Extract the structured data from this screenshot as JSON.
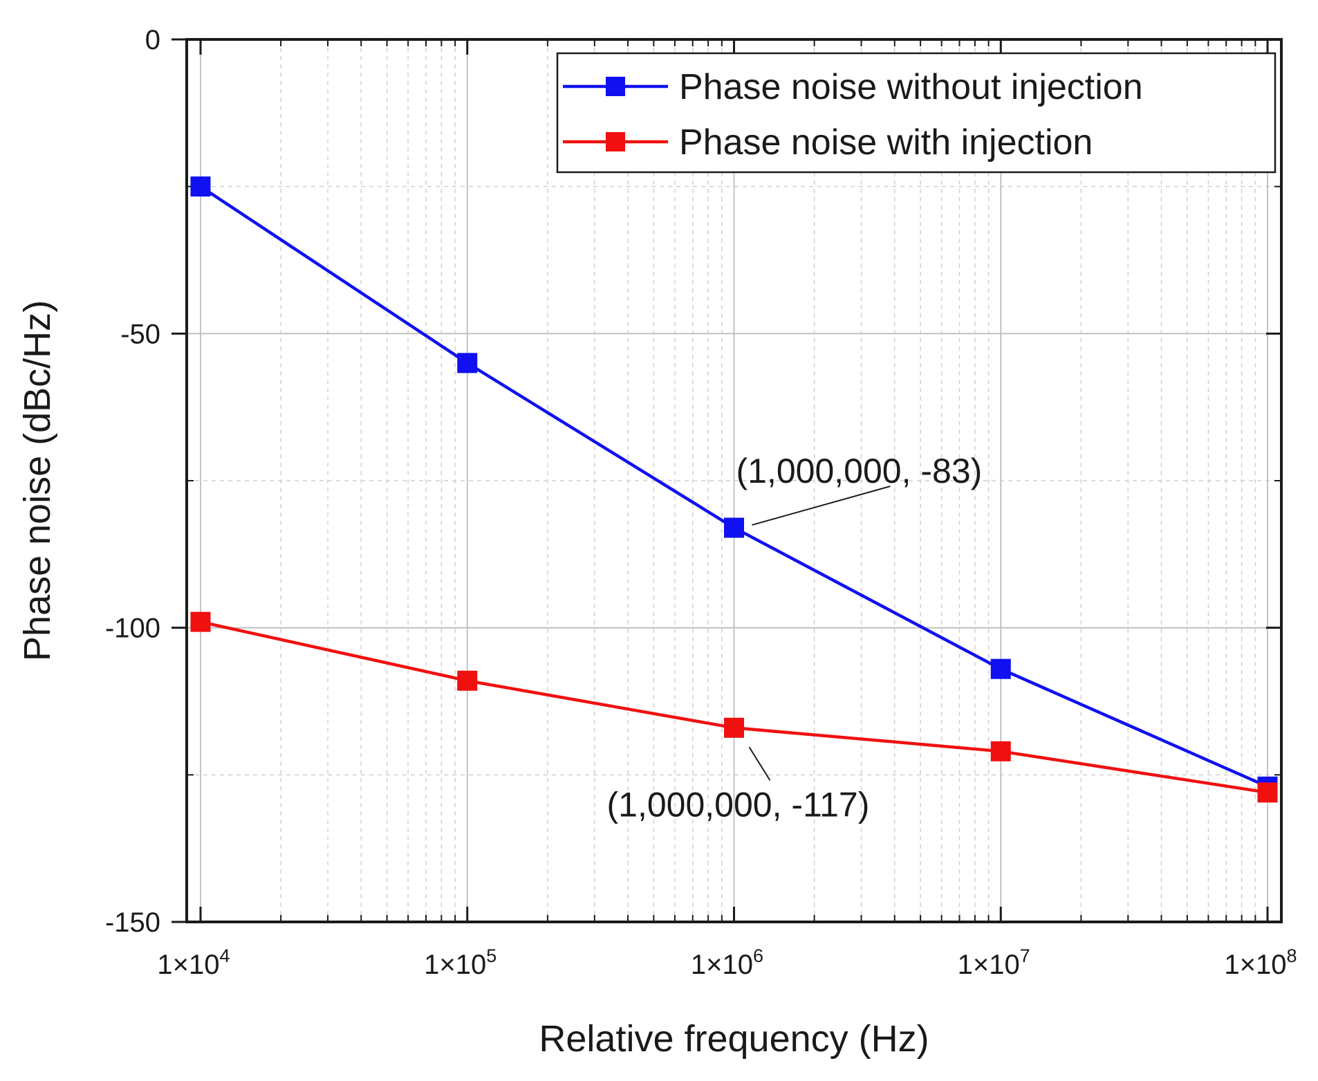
{
  "chart_data": {
    "type": "line",
    "xlabel": "Relative frequency (Hz)",
    "ylabel": "Phase noise (dBc/Hz)",
    "x_scale": "log",
    "xlim": [
      10000,
      100000000
    ],
    "ylim": [
      -150,
      0
    ],
    "x_ticks": [
      {
        "value": 10000,
        "mant": "1×10",
        "exp": "4"
      },
      {
        "value": 100000,
        "mant": "1×10",
        "exp": "5"
      },
      {
        "value": 1000000,
        "mant": "1×10",
        "exp": "6"
      },
      {
        "value": 10000000,
        "mant": "1×10",
        "exp": "7"
      },
      {
        "value": 100000000,
        "mant": "1×10",
        "exp": "8"
      }
    ],
    "y_ticks": [
      {
        "value": 0,
        "label": "0"
      },
      {
        "value": -50,
        "label": "-50"
      },
      {
        "value": -100,
        "label": "-100"
      },
      {
        "value": -150,
        "label": "-150"
      }
    ],
    "grid": true,
    "legend_position": "top-right",
    "series": [
      {
        "name": "Phase noise without injection",
        "color": "#1010f0",
        "marker": "square",
        "x": [
          10000,
          100000,
          1000000,
          10000000,
          100000000
        ],
        "y": [
          -25,
          -55,
          -83,
          -107,
          -127
        ]
      },
      {
        "name": "Phase noise with injection",
        "color": "#f01010",
        "marker": "square",
        "x": [
          10000,
          100000,
          1000000,
          10000000,
          100000000
        ],
        "y": [
          -99,
          -109,
          -117,
          -121,
          -128
        ]
      }
    ],
    "annotations": [
      {
        "text": "(1,000,000, -83)",
        "x": 1000000,
        "y": -83,
        "series": 0
      },
      {
        "text": "(1,000,000, -117)",
        "x": 1000000,
        "y": -117,
        "series": 1
      }
    ]
  }
}
